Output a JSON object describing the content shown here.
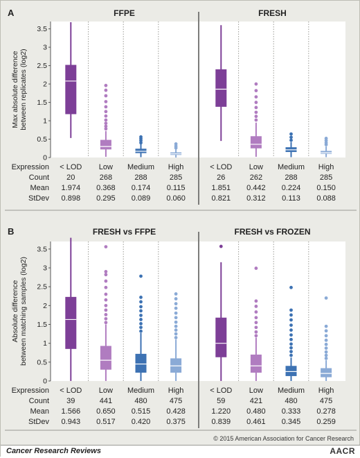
{
  "copyright": "© 2015 American Association for Cancer Research",
  "journal": "Cancer Research Reviews",
  "publisher_logo": "AACR",
  "colors": {
    "lod": "#7d3f97",
    "low": "#b07cc0",
    "medium": "#3d72b3",
    "high": "#8aaad6",
    "background": "#ebebe6",
    "plot_area": "#ffffff"
  },
  "chart_data": [
    {
      "type": "box",
      "panel": "A",
      "title": "FFPE",
      "ylabel": "Max absolute difference between replicates (log2)",
      "ylim": [
        0,
        3.7
      ],
      "yticks": [
        0,
        0.5,
        1,
        1.5,
        2,
        2.5,
        3,
        3.5
      ],
      "categories": [
        "< LOD",
        "Low",
        "Medium",
        "High"
      ],
      "boxes": [
        {
          "q1": 1.18,
          "median": 2.08,
          "q3": 2.52,
          "whisker_low": 0.53,
          "whisker_high": 3.68,
          "outliers": []
        },
        {
          "q1": 0.22,
          "median": 0.3,
          "q3": 0.48,
          "whisker_low": 0.02,
          "whisker_high": 0.72,
          "outliers": [
            0.78,
            0.85,
            0.93,
            1.02,
            1.13,
            1.25,
            1.38,
            1.52,
            1.68,
            1.83,
            1.96
          ]
        },
        {
          "q1": 0.12,
          "median": 0.17,
          "q3": 0.24,
          "whisker_low": 0.01,
          "whisker_high": 0.36,
          "outliers": [
            0.4,
            0.46,
            0.51,
            0.56
          ]
        },
        {
          "q1": 0.07,
          "median": 0.1,
          "q3": 0.14,
          "whisker_low": 0.0,
          "whisker_high": 0.22,
          "outliers": [
            0.26,
            0.31,
            0.37
          ]
        }
      ],
      "stats": {
        "labels": [
          "Expression",
          "Count",
          "Mean",
          "StDev"
        ],
        "columns": [
          [
            "< LOD",
            "20",
            "1.974",
            "0.898"
          ],
          [
            "Low",
            "268",
            "0.368",
            "0.295"
          ],
          [
            "Medium",
            "288",
            "0.174",
            "0.089"
          ],
          [
            "High",
            "285",
            "0.115",
            "0.060"
          ]
        ]
      }
    },
    {
      "type": "box",
      "panel": "",
      "title": "FRESH",
      "ylim": [
        0,
        3.7
      ],
      "categories": [
        "< LOD",
        "Low",
        "Medium",
        "High"
      ],
      "boxes": [
        {
          "q1": 1.38,
          "median": 1.86,
          "q3": 2.4,
          "whisker_low": 0.45,
          "whisker_high": 3.6,
          "outliers": []
        },
        {
          "q1": 0.25,
          "median": 0.36,
          "q3": 0.58,
          "whisker_low": 0.02,
          "whisker_high": 0.95,
          "outliers": [
            1.02,
            1.12,
            1.23,
            1.36,
            1.5,
            1.65,
            1.82,
            2.0
          ]
        },
        {
          "q1": 0.15,
          "median": 0.21,
          "q3": 0.28,
          "whisker_low": 0.01,
          "whisker_high": 0.42,
          "outliers": [
            0.47,
            0.55,
            0.64
          ]
        },
        {
          "q1": 0.1,
          "median": 0.13,
          "q3": 0.18,
          "whisker_low": 0.01,
          "whisker_high": 0.3,
          "outliers": [
            0.35,
            0.4,
            0.46,
            0.52
          ]
        }
      ],
      "stats": {
        "columns": [
          [
            "< LOD",
            "26",
            "1.851",
            "0.821"
          ],
          [
            "Low",
            "262",
            "0.442",
            "0.312"
          ],
          [
            "Medium",
            "288",
            "0.224",
            "0.113"
          ],
          [
            "High",
            "285",
            "0.150",
            "0.088"
          ]
        ]
      }
    },
    {
      "type": "box",
      "panel": "B",
      "title": "FRESH vs FFPE",
      "ylabel": "Absolute difference between matching samples (log2)",
      "ylim": [
        0,
        3.7
      ],
      "yticks": [
        0,
        0.5,
        1,
        1.5,
        2,
        2.5,
        3,
        3.5
      ],
      "categories": [
        "< LOD",
        "Low",
        "Medium",
        "High"
      ],
      "boxes": [
        {
          "q1": 0.85,
          "median": 1.63,
          "q3": 2.23,
          "whisker_low": 0.0,
          "whisker_high": 3.8,
          "outliers": []
        },
        {
          "q1": 0.3,
          "median": 0.55,
          "q3": 0.93,
          "whisker_low": 0.0,
          "whisker_high": 1.5,
          "outliers": [
            1.55,
            1.65,
            1.76,
            1.88,
            2.0,
            2.15,
            2.3,
            2.48,
            2.65,
            2.82,
            2.9,
            3.56
          ]
        },
        {
          "q1": 0.22,
          "median": 0.45,
          "q3": 0.72,
          "whisker_low": 0.0,
          "whisker_high": 1.27,
          "outliers": [
            1.32,
            1.42,
            1.52,
            1.63,
            1.74,
            1.86,
            1.97,
            2.1,
            2.22,
            2.78
          ]
        },
        {
          "q1": 0.22,
          "median": 0.4,
          "q3": 0.6,
          "whisker_low": 0.0,
          "whisker_high": 1.1,
          "outliers": [
            1.15,
            1.25,
            1.35,
            1.45,
            1.56,
            1.68,
            1.8,
            1.93,
            2.05,
            2.18,
            2.31
          ]
        }
      ],
      "stats": {
        "labels": [
          "Expression",
          "Count",
          "Mean",
          "StDev"
        ],
        "columns": [
          [
            "< LOD",
            "39",
            "1.566",
            "0.943"
          ],
          [
            "Low",
            "441",
            "0.650",
            "0.517"
          ],
          [
            "Medium",
            "480",
            "0.515",
            "0.420"
          ],
          [
            "High",
            "475",
            "0.428",
            "0.375"
          ]
        ]
      }
    },
    {
      "type": "box",
      "panel": "",
      "title": "FRESH vs FROZEN",
      "ylim": [
        0,
        3.7
      ],
      "categories": [
        "< LOD",
        "Low",
        "Medium",
        "High"
      ],
      "boxes": [
        {
          "q1": 0.63,
          "median": 1.0,
          "q3": 1.68,
          "whisker_low": 0.0,
          "whisker_high": 3.15,
          "outliers": [
            3.57
          ]
        },
        {
          "q1": 0.22,
          "median": 0.4,
          "q3": 0.7,
          "whisker_low": 0.0,
          "whisker_high": 1.15,
          "outliers": [
            1.2,
            1.3,
            1.42,
            1.55,
            1.68,
            1.83,
            1.98,
            2.12,
            2.99
          ]
        },
        {
          "q1": 0.13,
          "median": 0.25,
          "q3": 0.4,
          "whisker_low": 0.0,
          "whisker_high": 0.62,
          "outliers": [
            0.68,
            0.78,
            0.88,
            0.98,
            1.1,
            1.22,
            1.35,
            1.48,
            1.62,
            1.75,
            1.88,
            2.48
          ]
        },
        {
          "q1": 0.1,
          "median": 0.2,
          "q3": 0.34,
          "whisker_low": 0.0,
          "whisker_high": 0.55,
          "outliers": [
            0.6,
            0.68,
            0.77,
            0.87,
            0.97,
            1.08,
            1.2,
            1.33,
            1.45,
            2.2
          ]
        }
      ],
      "stats": {
        "columns": [
          [
            "< LOD",
            "59",
            "1.220",
            "0.839"
          ],
          [
            "Low",
            "421",
            "0.480",
            "0.461"
          ],
          [
            "Medium",
            "480",
            "0.333",
            "0.345"
          ],
          [
            "High",
            "475",
            "0.278",
            "0.259"
          ]
        ]
      }
    }
  ]
}
